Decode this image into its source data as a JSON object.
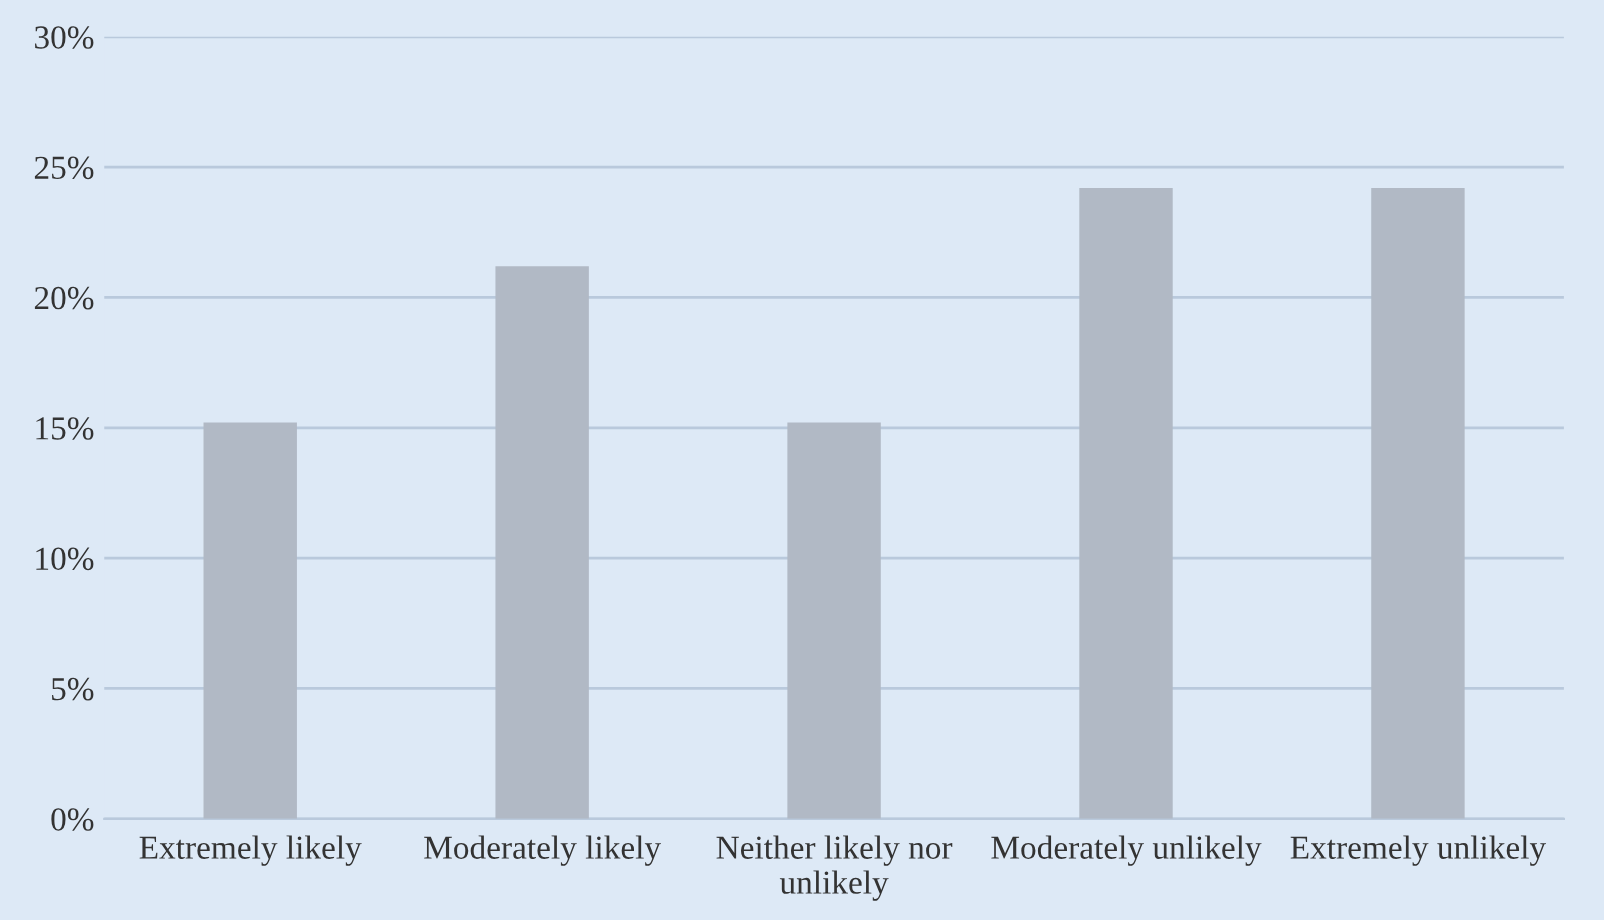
{
  "chart_data": {
    "type": "bar",
    "categories": [
      "Extremely likely",
      "Moderately likely",
      "Neither likely nor unlikely",
      "Moderately unlikely",
      "Extremely unlikely"
    ],
    "values": [
      15.2,
      21.2,
      15.2,
      24.2,
      24.2
    ],
    "color": "#b1b9c5",
    "ylim": [
      0,
      30
    ],
    "yticks": [
      {
        "value": 0,
        "label": "0%"
      },
      {
        "value": 5,
        "label": "5%"
      },
      {
        "value": 10,
        "label": "10%"
      },
      {
        "value": 15,
        "label": "15%"
      },
      {
        "value": 20,
        "label": "20%"
      },
      {
        "value": 25,
        "label": "25%"
      },
      {
        "value": 30,
        "label": "30%"
      }
    ],
    "grid": "y"
  }
}
